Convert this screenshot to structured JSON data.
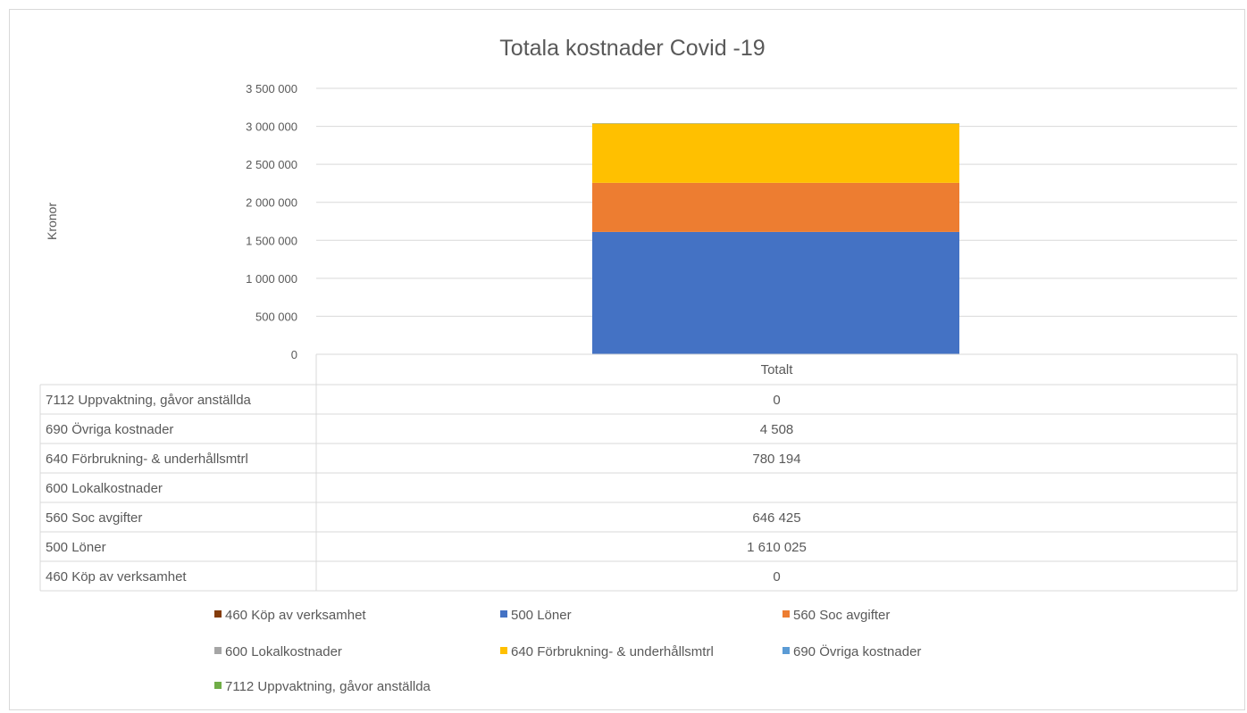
{
  "chart_data": {
    "type": "bar",
    "stacked": true,
    "title": "Totala kostnader Covid -19",
    "ylabel": "Kronor",
    "xlabel": "",
    "categories": [
      "Totalt"
    ],
    "ylim": [
      0,
      3500000
    ],
    "yticks": [
      0,
      500000,
      1000000,
      1500000,
      2000000,
      2500000,
      3000000,
      3500000
    ],
    "ytick_labels": [
      "0",
      "500 000",
      "1 000 000",
      "1 500 000",
      "2 000 000",
      "2 500 000",
      "3 000 000",
      "3 500 000"
    ],
    "grid": true,
    "legend_position": "bottom",
    "series": [
      {
        "name": "460 Köp av verksamhet",
        "values": [
          0
        ],
        "label": "0",
        "color": "#843C0C"
      },
      {
        "name": "500 Löner",
        "values": [
          1610025
        ],
        "label": "1 610 025",
        "color": "#4472C4"
      },
      {
        "name": "560 Soc avgifter",
        "values": [
          646425
        ],
        "label": "646 425",
        "color": "#ED7D31"
      },
      {
        "name": "600 Lokalkostnader",
        "values": [
          null
        ],
        "label": "",
        "color": "#A5A5A5"
      },
      {
        "name": "640 Förbrukning- & underhållsmtrl",
        "values": [
          780194
        ],
        "label": "780 194",
        "color": "#FFC000"
      },
      {
        "name": "690 Övriga kostnader",
        "values": [
          4508
        ],
        "label": "4 508",
        "color": "#5B9BD5"
      },
      {
        "name": "7112 Uppvaktning, gåvor anställda",
        "values": [
          0
        ],
        "label": "0",
        "color": "#70AD47"
      }
    ]
  }
}
